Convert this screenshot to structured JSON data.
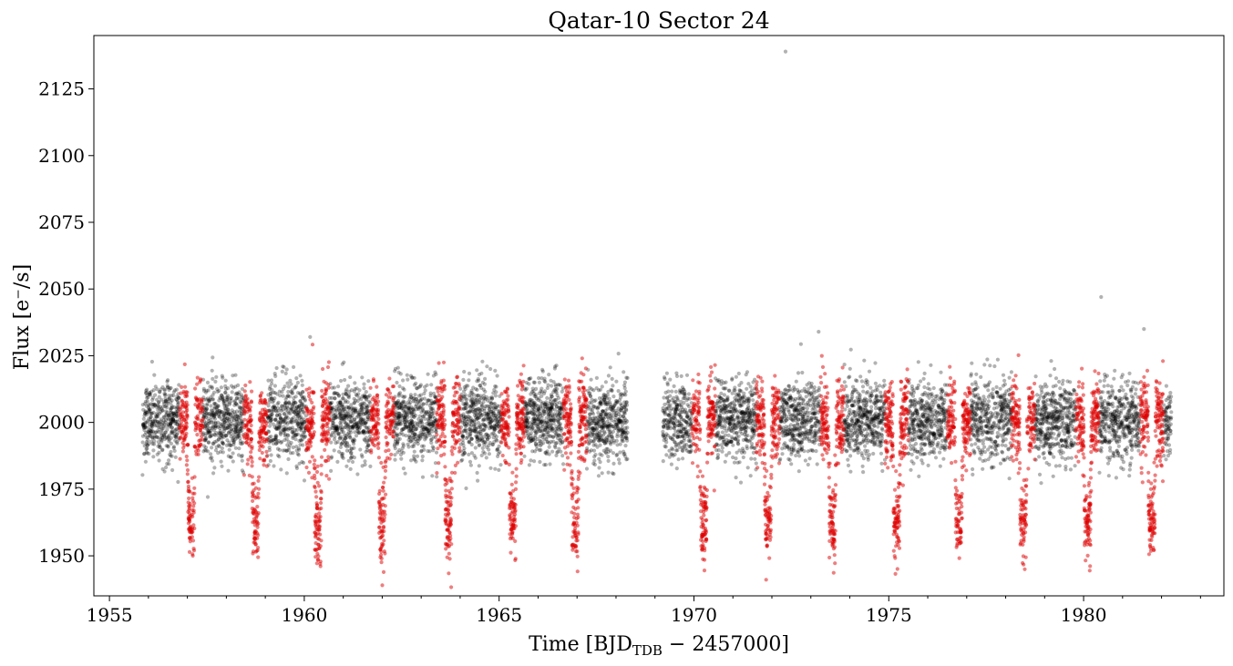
{
  "chart_data": {
    "type": "scatter",
    "title": "Qatar-10 Sector 24",
    "xlabel": {
      "prefix": "Time [BJD",
      "subscript": "TDB",
      "suffix": " − 2457000]"
    },
    "ylabel": "Flux [e⁻/s]",
    "xlim": [
      1954.6,
      1983.6
    ],
    "ylim": [
      1935,
      2145
    ],
    "xticks": [
      1955,
      1960,
      1965,
      1970,
      1975,
      1980
    ],
    "xtick_labels": [
      "1955",
      "1960",
      "1965",
      "1970",
      "1975",
      "1980"
    ],
    "yticks": [
      1950,
      1975,
      2000,
      2025,
      2050,
      2075,
      2100,
      2125
    ],
    "ytick_labels": [
      "1950",
      "1975",
      "2000",
      "2025",
      "2050",
      "2075",
      "2100",
      "2125"
    ],
    "grid": false,
    "series": [
      {
        "role": "out-of-transit",
        "color": "#000000",
        "opacity": 0.3,
        "time_ranges": [
          [
            1955.85,
            1968.3
          ],
          [
            1969.2,
            1982.25
          ]
        ],
        "baseline": 2001,
        "scatter_sigma": 7.5,
        "outliers": [
          [
            1972.35,
            2139
          ],
          [
            1980.45,
            2047
          ],
          [
            1981.55,
            2035
          ],
          [
            1960.15,
            2032
          ],
          [
            1973.2,
            2034
          ]
        ]
      },
      {
        "role": "in-transit",
        "color": "#dd0000",
        "opacity": 0.5,
        "transit_times": [
          1957.1,
          1958.75,
          1960.35,
          1962.0,
          1963.7,
          1965.35,
          1966.95,
          1970.25,
          1971.9,
          1973.55,
          1975.2,
          1976.8,
          1978.45,
          1980.1,
          1981.75
        ],
        "transit_depth": 38,
        "window_halfwidth_days": 0.3
      }
    ]
  }
}
